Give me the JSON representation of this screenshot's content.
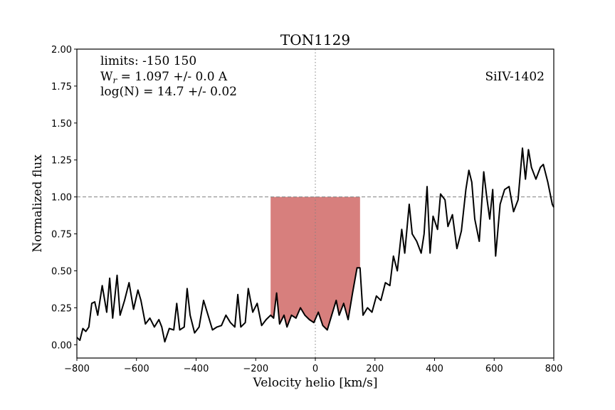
{
  "chart_data": {
    "type": "line",
    "title": "TON1129",
    "x_label": "Velocity helio [km/s]",
    "y_label": "Normalized flux",
    "annotations": {
      "limits": "limits: -150 150",
      "wr_main": "W",
      "wr_sub": "r",
      "wr_rest": " = 1.097 +/- 0.0 A",
      "logn": "log(N) = 14.7 +/- 0.02",
      "ion": "SiIV-1402"
    },
    "xlim": [
      -800,
      800
    ],
    "ylim": [
      -0.09,
      2.0
    ],
    "xticks": [
      {
        "value": -800,
        "label": "−800"
      },
      {
        "value": -600,
        "label": "−600"
      },
      {
        "value": -400,
        "label": "−400"
      },
      {
        "value": -200,
        "label": "−200"
      },
      0,
      200,
      400,
      600,
      800
    ],
    "yticks": [
      {
        "value": 0,
        "label": "0.00"
      },
      {
        "value": 0.25,
        "label": "0.25"
      },
      {
        "value": 0.5,
        "label": "0.50"
      },
      {
        "value": 0.75,
        "label": "0.75"
      },
      {
        "value": 1,
        "label": "1.00"
      },
      {
        "value": 1.25,
        "label": "1.25"
      },
      {
        "value": 1.5,
        "label": "1.50"
      },
      {
        "value": 1.75,
        "label": "1.75"
      },
      {
        "value": 2,
        "label": "2.00"
      }
    ],
    "continuum": 1.0,
    "vline": 0,
    "fill_range": [
      -150,
      150
    ],
    "fill_color": "#d77f7d",
    "x": [
      -800,
      -790,
      -780,
      -770,
      -760,
      -750,
      -740,
      -730,
      -715,
      -700,
      -690,
      -680,
      -665,
      -655,
      -640,
      -625,
      -610,
      -595,
      -585,
      -570,
      -555,
      -540,
      -525,
      -515,
      -505,
      -490,
      -475,
      -465,
      -455,
      -440,
      -430,
      -420,
      -405,
      -390,
      -375,
      -360,
      -345,
      -330,
      -315,
      -300,
      -285,
      -270,
      -260,
      -250,
      -235,
      -225,
      -210,
      -195,
      -180,
      -165,
      -150,
      -140,
      -130,
      -120,
      -105,
      -95,
      -80,
      -65,
      -50,
      -35,
      -20,
      -5,
      10,
      25,
      40,
      55,
      70,
      80,
      95,
      110,
      125,
      140,
      150,
      160,
      175,
      190,
      205,
      220,
      235,
      250,
      262,
      275,
      290,
      300,
      315,
      325,
      340,
      355,
      365,
      375,
      385,
      395,
      410,
      420,
      435,
      445,
      460,
      475,
      490,
      505,
      515,
      525,
      535,
      550,
      565,
      575,
      585,
      595,
      605,
      620,
      635,
      650,
      665,
      680,
      695,
      705,
      715,
      725,
      740,
      755,
      765,
      780,
      795,
      800
    ],
    "series": [
      {
        "name": "flux",
        "color": "#000000",
        "values": [
          0.05,
          0.03,
          0.11,
          0.09,
          0.12,
          0.28,
          0.29,
          0.2,
          0.4,
          0.22,
          0.45,
          0.18,
          0.47,
          0.2,
          0.3,
          0.42,
          0.24,
          0.37,
          0.3,
          0.14,
          0.18,
          0.12,
          0.17,
          0.12,
          0.02,
          0.11,
          0.1,
          0.28,
          0.1,
          0.12,
          0.38,
          0.2,
          0.08,
          0.12,
          0.3,
          0.2,
          0.1,
          0.12,
          0.13,
          0.2,
          0.15,
          0.12,
          0.34,
          0.12,
          0.15,
          0.38,
          0.22,
          0.28,
          0.13,
          0.17,
          0.2,
          0.18,
          0.35,
          0.14,
          0.2,
          0.12,
          0.2,
          0.18,
          0.25,
          0.2,
          0.17,
          0.15,
          0.22,
          0.13,
          0.1,
          0.2,
          0.3,
          0.2,
          0.28,
          0.17,
          0.35,
          0.52,
          0.52,
          0.2,
          0.25,
          0.22,
          0.33,
          0.3,
          0.42,
          0.4,
          0.6,
          0.5,
          0.78,
          0.62,
          0.95,
          0.75,
          0.7,
          0.62,
          0.75,
          1.07,
          0.62,
          0.87,
          0.78,
          1.02,
          0.98,
          0.8,
          0.88,
          0.65,
          0.77,
          1.05,
          1.18,
          1.1,
          0.85,
          0.7,
          1.17,
          1.0,
          0.85,
          1.05,
          0.6,
          0.95,
          1.05,
          1.07,
          0.9,
          0.98,
          1.33,
          1.12,
          1.32,
          1.2,
          1.12,
          1.2,
          1.22,
          1.1,
          0.95,
          0.93
        ]
      }
    ]
  }
}
